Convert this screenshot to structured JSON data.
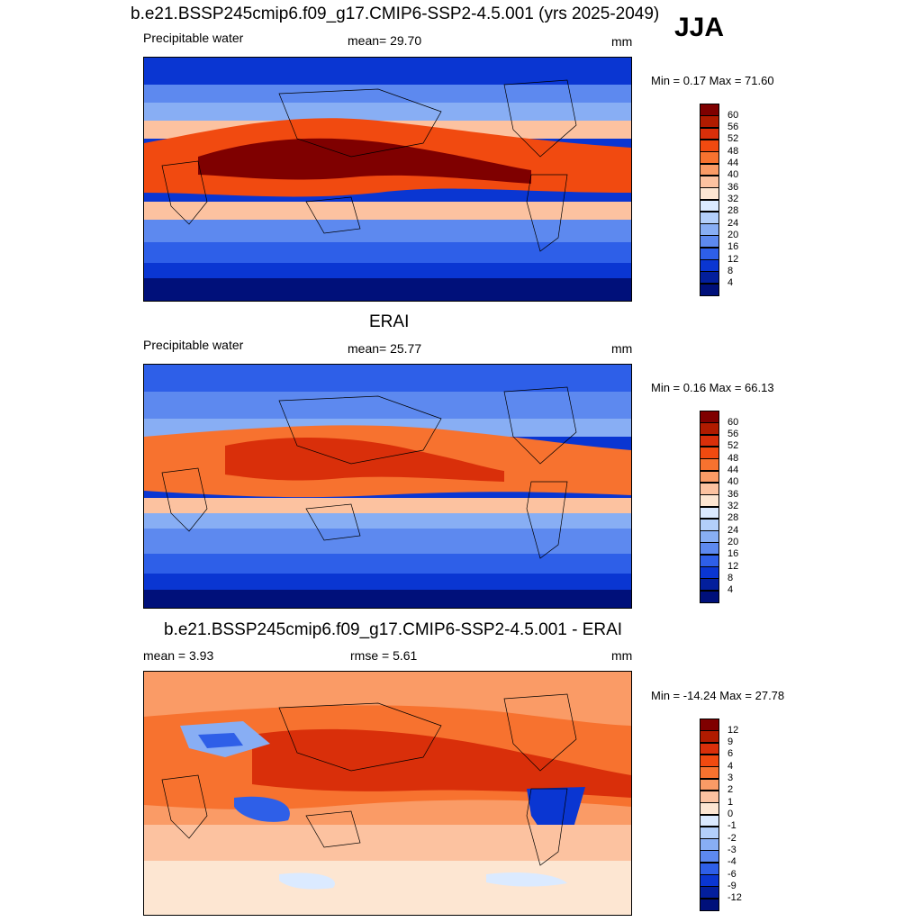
{
  "season": "JJA",
  "panels": [
    {
      "id": "model",
      "title": "b.e21.BSSP245cmip6.f09_g17.CMIP6-SSP2-4.5.001 (yrs 2025-2049)",
      "left_label": "Precipitable water",
      "center_label": "mean=  29.70",
      "units": "mm",
      "minmax": "Min =   0.17 Max =  71.60",
      "colorbar": {
        "levels": [
          "60",
          "56",
          "52",
          "48",
          "44",
          "40",
          "36",
          "32",
          "28",
          "24",
          "20",
          "16",
          "12",
          "8",
          "4"
        ],
        "colors": [
          "#7f0000",
          "#b01b00",
          "#d92f0a",
          "#f14a10",
          "#f7722f",
          "#fa9b66",
          "#fcc2a0",
          "#fde6d2",
          "#dbeaff",
          "#b3cffa",
          "#88aef4",
          "#5d89ef",
          "#2e5fe8",
          "#0a36d2",
          "#031f9c",
          "#00107a"
        ]
      }
    },
    {
      "id": "obs",
      "title": "ERAI",
      "left_label": "Precipitable water",
      "center_label": "mean=  25.77",
      "units": "mm",
      "minmax": "Min =   0.16 Max =  66.13",
      "colorbar": {
        "levels": [
          "60",
          "56",
          "52",
          "48",
          "44",
          "40",
          "36",
          "32",
          "28",
          "24",
          "20",
          "16",
          "12",
          "8",
          "4"
        ],
        "colors": [
          "#7f0000",
          "#b01b00",
          "#d92f0a",
          "#f14a10",
          "#f7722f",
          "#fa9b66",
          "#fcc2a0",
          "#fde6d2",
          "#dbeaff",
          "#b3cffa",
          "#88aef4",
          "#5d89ef",
          "#2e5fe8",
          "#0a36d2",
          "#031f9c",
          "#00107a"
        ]
      }
    },
    {
      "id": "diff",
      "title": "b.e21.BSSP245cmip6.f09_g17.CMIP6-SSP2-4.5.001 - ERAI",
      "left_label": "mean =   3.93",
      "center_label": "rmse =   5.61",
      "units": "mm",
      "minmax": "Min = -14.24 Max =  27.78",
      "colorbar": {
        "levels": [
          "12",
          "9",
          "6",
          "4",
          "3",
          "2",
          "1",
          "0",
          "-1",
          "-2",
          "-3",
          "-4",
          "-6",
          "-9",
          "-12"
        ],
        "colors": [
          "#7f0000",
          "#b01b00",
          "#d92f0a",
          "#f14a10",
          "#f7722f",
          "#fa9b66",
          "#fcc2a0",
          "#fde6d2",
          "#dbeaff",
          "#b3cffa",
          "#88aef4",
          "#5d89ef",
          "#2e5fe8",
          "#0a36d2",
          "#031f9c",
          "#00107a"
        ]
      }
    }
  ]
}
